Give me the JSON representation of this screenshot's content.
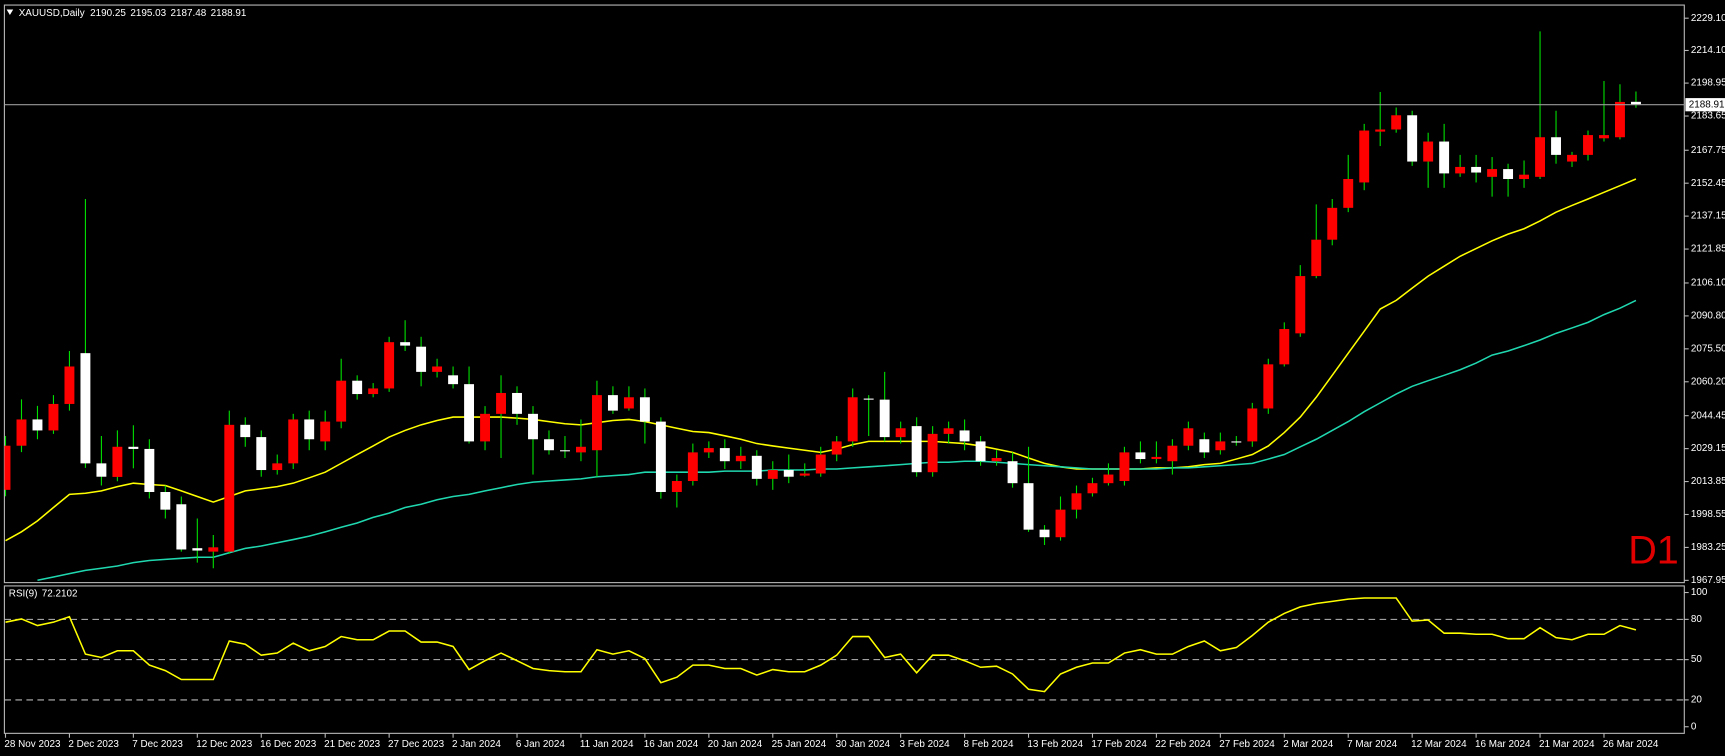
{
  "chart_data": [
    {
      "type": "candlestick",
      "symbol_label": "XAUUSD,Daily",
      "categories": [
        "28 Nov 2023",
        null,
        null,
        null,
        "2 Dec 2023",
        null,
        null,
        null,
        "7 Dec 2023",
        null,
        null,
        null,
        "12 Dec 2023",
        null,
        null,
        null,
        "16 Dec 2023",
        null,
        null,
        null,
        "21 Dec 2023",
        null,
        null,
        null,
        "27 Dec 2023",
        null,
        null,
        null,
        "2 Jan 2024",
        null,
        null,
        null,
        "6 Jan 2024",
        null,
        null,
        null,
        "11 Jan 2024",
        null,
        null,
        null,
        "16 Jan 2024",
        null,
        null,
        null,
        "20 Jan 2024",
        null,
        null,
        null,
        "25 Jan 2024",
        null,
        null,
        null,
        "30 Jan 2024",
        null,
        null,
        null,
        "3 Feb 2024",
        null,
        null,
        null,
        "8 Feb 2024",
        null,
        null,
        null,
        "13 Feb 2024",
        null,
        null,
        null,
        "17 Feb 2024",
        null,
        null,
        null,
        "22 Feb 2024",
        null,
        null,
        null,
        "27 Feb 2024",
        null,
        null,
        null,
        "2 Mar 2024",
        null,
        null,
        null,
        "7 Mar 2024",
        null,
        null,
        null,
        "12 Mar 2024",
        null,
        null,
        null,
        "16 Mar 2024",
        null,
        null,
        null,
        "21 Mar 2024",
        null,
        null,
        null,
        "26 Mar 2024",
        null,
        null
      ],
      "open": [
        2010.0,
        2030.5,
        2042.7,
        2037.6,
        2049.9,
        2073.5,
        2022.3,
        2016.0,
        2030.0,
        2029.0,
        2009.0,
        2003.3,
        1982.9,
        1981.3,
        1981.3,
        2040.2,
        2034.5,
        2019.2,
        2022.3,
        2042.7,
        2032.5,
        2041.7,
        2060.7,
        2054.5,
        2057.1,
        2078.6,
        2076.5,
        2064.8,
        2063.2,
        2059.1,
        2032.5,
        2045.3,
        2055.0,
        2045.3,
        2033.5,
        2028.4,
        2027.4,
        2028.4,
        2054.0,
        2047.8,
        2053.0,
        2041.7,
        2009.0,
        2014.1,
        2027.4,
        2029.4,
        2023.3,
        2025.8,
        2015.1,
        2019.2,
        2016.6,
        2017.6,
        2026.4,
        2032.5,
        2052.4,
        2051.9,
        2034.5,
        2039.6,
        2018.2,
        2036.0,
        2037.6,
        2032.5,
        2023.3,
        2023.3,
        2013.1,
        1991.5,
        1988.0,
        2000.8,
        2008.4,
        2013.1,
        2014.1,
        2027.4,
        2024.3,
        2023.3,
        2030.5,
        2033.5,
        2028.4,
        2032.5,
        2032.5,
        2047.8,
        2068.3,
        2082.7,
        2109.3,
        2126.2,
        2141.0,
        2152.8,
        2176.4,
        2177.4,
        2184.0,
        2162.5,
        2171.8,
        2157.0,
        2160.0,
        2155.4,
        2159.0,
        2154.4,
        2155.4,
        2173.8,
        2162.5,
        2165.6,
        2173.3,
        2173.8,
        2190.25
      ],
      "high": [
        2035.0,
        2052.0,
        2049.0,
        2054.0,
        2074.5,
        2145.1,
        2035.0,
        2037.6,
        2040.0,
        2033.5,
        2012.0,
        2006.9,
        1996.7,
        1989.0,
        2046.8,
        2043.7,
        2037.6,
        2026.4,
        2045.3,
        2046.8,
        2046.8,
        2070.9,
        2063.2,
        2059.6,
        2081.1,
        2088.8,
        2081.1,
        2070.9,
        2067.3,
        2067.3,
        2048.9,
        2063.2,
        2058.1,
        2048.9,
        2037.6,
        2035.0,
        2042.7,
        2060.7,
        2058.1,
        2058.1,
        2057.1,
        2043.7,
        2017.1,
        2031.5,
        2032.5,
        2033.5,
        2030.0,
        2028.4,
        2023.3,
        2026.4,
        2022.3,
        2030.0,
        2035.0,
        2057.1,
        2054.0,
        2064.8,
        2041.7,
        2043.7,
        2039.6,
        2041.7,
        2042.7,
        2035.0,
        2028.4,
        2027.4,
        2030.0,
        1993.6,
        2006.9,
        2012.0,
        2015.6,
        2022.3,
        2030.0,
        2032.5,
        2032.5,
        2033.5,
        2041.7,
        2036.6,
        2036.6,
        2035.0,
        2050.4,
        2070.9,
        2087.8,
        2114.4,
        2142.6,
        2145.1,
        2165.6,
        2180.0,
        2194.8,
        2187.6,
        2186.1,
        2175.9,
        2180.0,
        2165.6,
        2165.6,
        2164.6,
        2161.5,
        2163.0,
        2223.0,
        2186.1,
        2167.0,
        2176.9,
        2199.9,
        2198.4,
        2195.03
      ],
      "low": [
        2007.0,
        2027.5,
        2033.5,
        2036.0,
        2046.8,
        2020.2,
        2012.0,
        2014.0,
        2020.0,
        2006.0,
        1996.7,
        1981.3,
        1976.2,
        1973.6,
        1980.3,
        2030.0,
        2016.1,
        2017.1,
        2019.7,
        2028.4,
        2028.4,
        2038.6,
        2051.9,
        2053.0,
        2055.5,
        2074.5,
        2058.1,
        2062.2,
        2057.1,
        2031.5,
        2028.4,
        2024.8,
        2040.2,
        2017.1,
        2026.4,
        2024.8,
        2023.3,
        2016.1,
        2045.3,
        2046.8,
        2031.5,
        2005.9,
        2001.8,
        2012.0,
        2024.8,
        2019.7,
        2019.7,
        2012.0,
        2010.0,
        2013.1,
        2016.1,
        2016.1,
        2023.3,
        2030.0,
        2035.0,
        2032.5,
        2031.5,
        2016.1,
        2016.1,
        2031.5,
        2028.4,
        2021.2,
        2021.2,
        2011.0,
        1990.5,
        1984.4,
        1986.4,
        1996.7,
        2006.9,
        2012.0,
        2012.0,
        2022.3,
        2022.3,
        2017.1,
        2028.4,
        2024.8,
        2026.4,
        2030.5,
        2030.0,
        2045.3,
        2067.3,
        2081.1,
        2108.3,
        2123.6,
        2139.0,
        2149.2,
        2169.7,
        2175.9,
        2160.5,
        2150.3,
        2150.3,
        2155.4,
        2152.8,
        2146.2,
        2146.2,
        2150.3,
        2154.4,
        2161.5,
        2160.0,
        2163.0,
        2171.8,
        2172.8,
        2187.48
      ],
      "close": [
        2030.5,
        2042.7,
        2037.6,
        2049.9,
        2067.3,
        2022.3,
        2016.1,
        2030.0,
        2029.0,
        2009.0,
        2000.8,
        1982.3,
        1981.8,
        1983.3,
        2040.2,
        2034.5,
        2019.2,
        2022.3,
        2042.7,
        2033.5,
        2041.7,
        2060.7,
        2054.5,
        2057.1,
        2078.6,
        2077.0,
        2064.8,
        2067.3,
        2059.1,
        2032.5,
        2045.3,
        2055.0,
        2045.3,
        2033.5,
        2028.4,
        2028.0,
        2030.0,
        2054.0,
        2046.8,
        2053.0,
        2041.7,
        2009.0,
        2014.1,
        2027.4,
        2029.4,
        2023.3,
        2025.8,
        2015.1,
        2019.2,
        2016.1,
        2017.6,
        2026.4,
        2032.5,
        2053.0,
        2051.9,
        2034.5,
        2038.6,
        2018.2,
        2036.0,
        2038.6,
        2032.5,
        2023.3,
        2024.8,
        2013.1,
        1991.5,
        1988.0,
        2000.8,
        2008.4,
        2013.1,
        2017.1,
        2027.4,
        2024.3,
        2025.3,
        2030.5,
        2038.6,
        2027.4,
        2032.5,
        2032.0,
        2047.8,
        2068.3,
        2084.7,
        2109.3,
        2126.2,
        2141.0,
        2154.4,
        2176.9,
        2177.4,
        2184.0,
        2162.5,
        2171.8,
        2157.0,
        2160.0,
        2157.4,
        2159.0,
        2154.4,
        2156.4,
        2173.8,
        2165.6,
        2165.6,
        2174.8,
        2174.8,
        2190.2,
        2188.91
      ],
      "up_color": "#ff0000",
      "down_color": "#ffffff",
      "wick_color": "#00e000",
      "overlays": [
        {
          "color": "#ffff00",
          "values": [
            1986.4,
            1990.5,
            1995.6,
            2001.8,
            2007.9,
            2008.4,
            2009.5,
            2011.5,
            2013.1,
            2012.5,
            2012.0,
            2009.5,
            2006.9,
            2004.3,
            2006.9,
            2009.5,
            2010.5,
            2011.5,
            2013.1,
            2015.6,
            2018.2,
            2022.3,
            2026.4,
            2030.4,
            2034.5,
            2037.6,
            2040.2,
            2042.2,
            2043.8,
            2043.8,
            2043.8,
            2043.8,
            2043.3,
            2042.7,
            2041.7,
            2040.7,
            2040.2,
            2041.2,
            2042.2,
            2042.7,
            2041.7,
            2040.2,
            2038.6,
            2037.1,
            2036.6,
            2035.1,
            2033.5,
            2031.5,
            2030.4,
            2029.4,
            2028.4,
            2027.4,
            2028.9,
            2031.0,
            2032.5,
            2032.5,
            2032.5,
            2032.5,
            2032.5,
            2032.0,
            2031.5,
            2030.4,
            2028.9,
            2027.4,
            2024.8,
            2022.3,
            2020.7,
            2019.7,
            2019.7,
            2019.7,
            2019.7,
            2019.7,
            2020.2,
            2020.2,
            2020.7,
            2021.7,
            2022.3,
            2024.3,
            2026.4,
            2030.4,
            2036.6,
            2043.8,
            2053.0,
            2063.2,
            2073.5,
            2083.7,
            2094.0,
            2098.0,
            2103.7,
            2109.3,
            2113.9,
            2118.5,
            2122.1,
            2125.7,
            2128.8,
            2131.3,
            2134.9,
            2139.0,
            2142.1,
            2145.1,
            2148.2,
            2151.3,
            2154.4
          ]
        },
        {
          "color": "#20d8b0",
          "values": [
            null,
            null,
            1968.0,
            1969.5,
            1971.1,
            1972.6,
            1973.6,
            1974.6,
            1976.2,
            1977.2,
            1977.7,
            1978.2,
            1978.7,
            1978.7,
            1980.8,
            1982.8,
            1983.9,
            1985.4,
            1986.9,
            1988.5,
            1990.5,
            1992.6,
            1994.6,
            1997.2,
            1999.2,
            2001.8,
            2003.3,
            2005.4,
            2006.9,
            2007.9,
            2009.5,
            2011.0,
            2012.5,
            2013.6,
            2014.1,
            2014.6,
            2015.1,
            2016.1,
            2016.6,
            2017.1,
            2018.2,
            2018.2,
            2018.2,
            2018.2,
            2018.2,
            2018.7,
            2018.7,
            2018.7,
            2019.2,
            2019.2,
            2019.2,
            2019.7,
            2019.7,
            2020.2,
            2020.7,
            2021.2,
            2021.7,
            2022.3,
            2022.8,
            2022.8,
            2023.3,
            2023.3,
            2022.8,
            2022.3,
            2021.7,
            2021.2,
            2020.7,
            2020.2,
            2019.7,
            2019.7,
            2019.7,
            2019.7,
            2019.7,
            2020.2,
            2020.2,
            2020.7,
            2021.2,
            2021.7,
            2022.3,
            2024.3,
            2026.4,
            2030.0,
            2033.5,
            2037.6,
            2041.7,
            2046.3,
            2050.4,
            2054.5,
            2058.1,
            2060.7,
            2063.2,
            2065.8,
            2068.9,
            2072.6,
            2074.5,
            2077.0,
            2079.6,
            2082.7,
            2085.2,
            2087.8,
            2091.4,
            2094.4,
            2098.0
          ]
        }
      ],
      "ylim": [
        1966.9,
        2235.2
      ],
      "yticks": [
        {
          "value": 2229.1,
          "label": "2229.10"
        },
        {
          "value": 2214.1,
          "label": "2214.10"
        },
        2198.95,
        2183.65,
        2167.75,
        2152.45,
        2137.15,
        2121.85,
        {
          "value": 2106.1,
          "label": "2106.10"
        },
        {
          "value": 2090.8,
          "label": "2090.80"
        },
        {
          "value": 2075.5,
          "label": "2075.50"
        },
        {
          "value": 2060.2,
          "label": "2060.20"
        },
        2044.45,
        2029.15,
        2013.85,
        1998.55,
        1983.25,
        1967.95
      ],
      "grid": false,
      "last_price_line": true,
      "corner_label": "D1",
      "corner_label_color": "#e00000"
    },
    {
      "type": "line",
      "title": "RSI(9)",
      "color": "#ffff00",
      "values": [
        77.9,
        80.3,
        75.4,
        77.9,
        82.0,
        54.1,
        51.6,
        56.6,
        56.6,
        45.9,
        41.8,
        35.2,
        35.2,
        35.2,
        63.9,
        61.5,
        53.3,
        54.9,
        62.3,
        56.6,
        59.8,
        67.2,
        64.8,
        64.8,
        71.3,
        71.3,
        63.1,
        63.1,
        59.8,
        42.6,
        49.2,
        54.9,
        49.2,
        43.4,
        41.8,
        41.0,
        41.0,
        57.4,
        54.1,
        56.6,
        50.8,
        32.8,
        36.9,
        45.9,
        45.9,
        43.4,
        43.4,
        38.5,
        42.6,
        41.0,
        41.0,
        45.9,
        53.3,
        67.2,
        67.2,
        51.6,
        54.1,
        40.2,
        53.3,
        53.3,
        49.2,
        44.3,
        45.1,
        39.3,
        27.9,
        26.2,
        39.3,
        44.3,
        47.5,
        47.5,
        54.9,
        57.4,
        54.1,
        54.1,
        59.8,
        63.9,
        56.6,
        59.0,
        68.0,
        77.9,
        84.4,
        89.3,
        91.8,
        93.4,
        95.1,
        95.9,
        95.9,
        95.9,
        78.7,
        79.5,
        69.7,
        69.7,
        68.9,
        68.9,
        65.6,
        65.6,
        73.8,
        66.4,
        64.8,
        68.9,
        68.9,
        75.4,
        72.2102
      ],
      "ylim": [
        0,
        100
      ],
      "yticks": [
        0,
        20,
        50,
        80,
        100
      ],
      "level_lines": true
    }
  ]
}
